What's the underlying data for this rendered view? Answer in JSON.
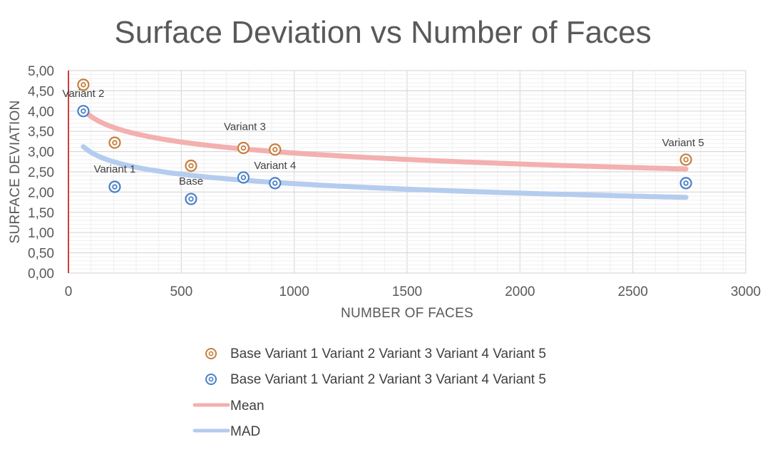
{
  "chart_data": {
    "type": "scatter",
    "title": "Surface Deviation vs Number of Faces",
    "xlabel": "NUMBER OF FACES",
    "ylabel": "SURFACE DEVIATION",
    "xlim": [
      0,
      3000
    ],
    "ylim": [
      0,
      5
    ],
    "xticks": [
      "0",
      "500",
      "1000",
      "1500",
      "2000",
      "2500",
      "3000"
    ],
    "yticks": [
      "0,00",
      "0,50",
      "1,00",
      "1,50",
      "2,00",
      "2,50",
      "3,00",
      "3,50",
      "4,00",
      "4,50",
      "5,00"
    ],
    "grid": true,
    "legend_position": "bottom",
    "series": [
      {
        "name": "Base Variant 1 Variant 2 Variant 3 Variant 4 Variant 5",
        "color": "#C5803F",
        "marker": "double-circle",
        "points": [
          {
            "x": 66,
            "y": 4.65
          },
          {
            "x": 205,
            "y": 3.22
          },
          {
            "x": 543,
            "y": 2.65
          },
          {
            "x": 775,
            "y": 3.09
          },
          {
            "x": 915,
            "y": 3.05
          },
          {
            "x": 2735,
            "y": 2.8
          }
        ]
      },
      {
        "name": "Base Variant 1 Variant 2 Variant 3 Variant 4 Variant 5",
        "color": "#4A7FC8",
        "marker": "double-circle",
        "points": [
          {
            "x": 66,
            "y": 4.0
          },
          {
            "x": 205,
            "y": 2.13
          },
          {
            "x": 543,
            "y": 1.83
          },
          {
            "x": 775,
            "y": 2.36
          },
          {
            "x": 915,
            "y": 2.22
          },
          {
            "x": 2735,
            "y": 2.22
          }
        ]
      }
    ],
    "point_labels": [
      {
        "text": "Variant 2",
        "x": 66,
        "y": 4.0
      },
      {
        "text": "Variant 1",
        "x": 205,
        "y": 2.13
      },
      {
        "text": "Base",
        "x": 543,
        "y": 1.83
      },
      {
        "text": "Variant 3",
        "x": 775,
        "y": 3.09
      },
      {
        "text": "Variant 4",
        "x": 915,
        "y": 2.22
      },
      {
        "text": "Variant 5",
        "x": 2735,
        "y": 2.8
      }
    ],
    "trendlines": [
      {
        "name": "Mean",
        "color": "#F4AFAF",
        "type": "logarithmic",
        "from_x": 66,
        "to_x": 2735,
        "start_y": 4.03,
        "end_y": 2.57
      },
      {
        "name": "MAD",
        "color": "#B4CCEE",
        "type": "logarithmic",
        "from_x": 66,
        "to_x": 2735,
        "start_y": 3.12,
        "end_y": 1.87
      }
    ]
  }
}
